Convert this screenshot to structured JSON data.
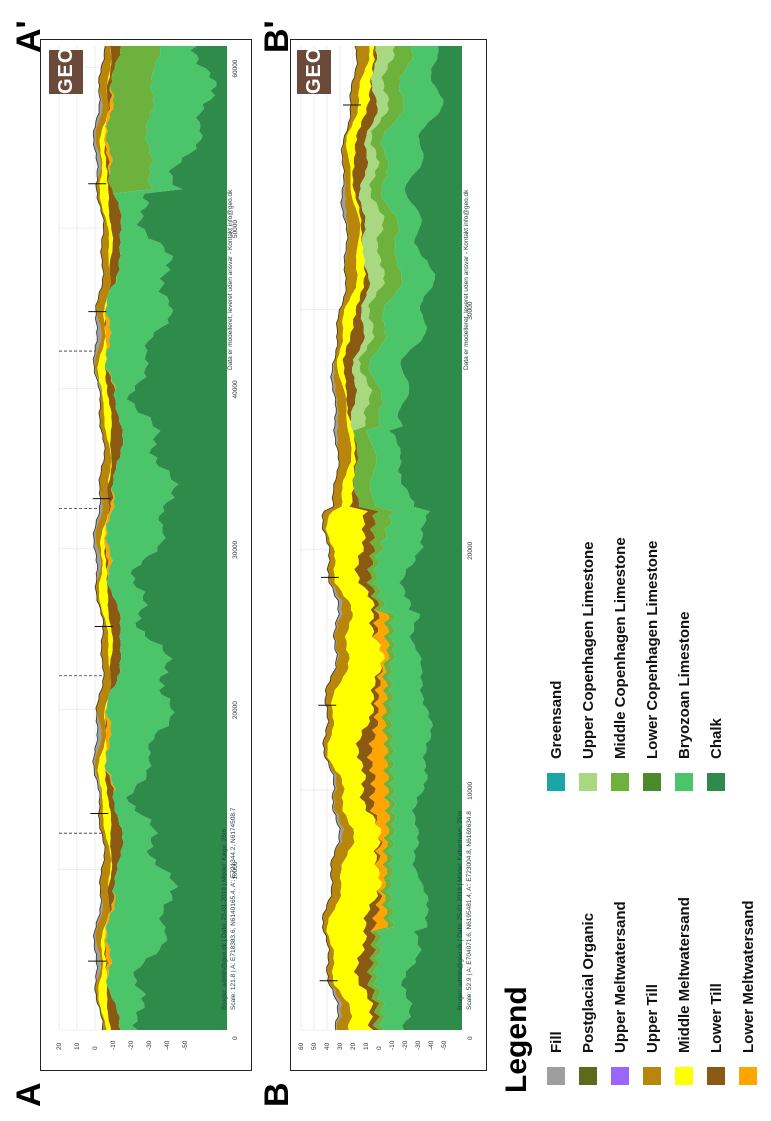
{
  "labels": {
    "A": "A",
    "A_prime": "A'",
    "B": "B",
    "B_prime": "B'"
  },
  "legend": {
    "title": "Legend",
    "items": [
      {
        "label": "Fill",
        "color": "#9e9e9e"
      },
      {
        "label": "Postglacial Organic",
        "color": "#5a6b1a"
      },
      {
        "label": "Upper Meltwatersand",
        "color": "#9966ff"
      },
      {
        "label": "Upper Till",
        "color": "#b8860b"
      },
      {
        "label": "Middle Meltwatersand",
        "color": "#ffff00"
      },
      {
        "label": "Lower Till",
        "color": "#8b5a12"
      },
      {
        "label": "Lower Meltwatersand",
        "color": "#ffa500"
      },
      {
        "label": "Greensand",
        "color": "#1aa6a6"
      },
      {
        "label": "Upper Copenhagen Limestone",
        "color": "#a8d880"
      },
      {
        "label": "Middle Copenhagen Limestone",
        "color": "#6cb23c"
      },
      {
        "label": "Lower Copenhagen Limestone",
        "color": "#4b8a2a"
      },
      {
        "label": "Bryozoan Limestone",
        "color": "#4cc46a"
      },
      {
        "label": "Chalk",
        "color": "#2e8b4a"
      }
    ]
  },
  "sectionA": {
    "info1": "Bruger: admin@geo.dk | Dato: 25-01-2019 | Model: Køge, 25m",
    "info2": "Scale: 121.8 | A: E718383.6, N6140165.4, A': E721344.2, N6174508.7",
    "yticks": [
      "20",
      "10",
      "0",
      "-10",
      "-20",
      "-30",
      "-40",
      "-50"
    ],
    "xticks": [
      "0",
      "10000",
      "20000",
      "30000",
      "40000",
      "50000",
      "60000"
    ],
    "logo": "GEO",
    "note": "Data er modelleret, leveret uden ansvar - Kontakt info@geo.dk"
  },
  "sectionB": {
    "info1": "Bruger: admin@geo.dk | Dato: 25-01-2019 | Model: København, 25m",
    "info2": "Scale: 52.9 | A: E704071.6, N6195481.4, A': E723004.8, N6169634.8",
    "yticks": [
      "60",
      "50",
      "40",
      "30",
      "20",
      "10",
      "0",
      "-10",
      "-20",
      "-30",
      "-40",
      "-50"
    ],
    "xticks": [
      "0",
      "10000",
      "20000",
      "30000"
    ],
    "logo": "GEO",
    "note": "Data er modelleret, leveret uden ansvar - Kontakt info@geo.dk"
  }
}
